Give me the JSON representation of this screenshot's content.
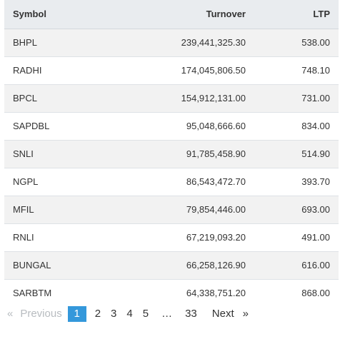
{
  "table": {
    "headers": {
      "symbol": "Symbol",
      "turnover": "Turnover",
      "ltp": "LTP"
    },
    "rows": [
      {
        "symbol": "BHPL",
        "turnover": "239,441,325.30",
        "ltp": "538.00"
      },
      {
        "symbol": "RADHI",
        "turnover": "174,045,806.50",
        "ltp": "748.10"
      },
      {
        "symbol": "BPCL",
        "turnover": "154,912,131.00",
        "ltp": "731.00"
      },
      {
        "symbol": "SAPDBL",
        "turnover": "95,048,666.60",
        "ltp": "834.00"
      },
      {
        "symbol": "SNLI",
        "turnover": "91,785,458.90",
        "ltp": "514.90"
      },
      {
        "symbol": "NGPL",
        "turnover": "86,543,472.70",
        "ltp": "393.70"
      },
      {
        "symbol": "MFIL",
        "turnover": "79,854,446.00",
        "ltp": "693.00"
      },
      {
        "symbol": "RNLI",
        "turnover": "67,219,093.20",
        "ltp": "491.00"
      },
      {
        "symbol": "BUNGAL",
        "turnover": "66,258,126.90",
        "ltp": "616.00"
      },
      {
        "symbol": "SARBTM",
        "turnover": "64,338,751.20",
        "ltp": "868.00"
      }
    ]
  },
  "pagination": {
    "first_icon": "«",
    "previous": "Previous",
    "pages": [
      "1",
      "2",
      "3",
      "4",
      "5"
    ],
    "active_page": "1",
    "ellipsis": "…",
    "last_page": "33",
    "next": "Next",
    "last_icon": "»",
    "active_color": "#3498db"
  }
}
